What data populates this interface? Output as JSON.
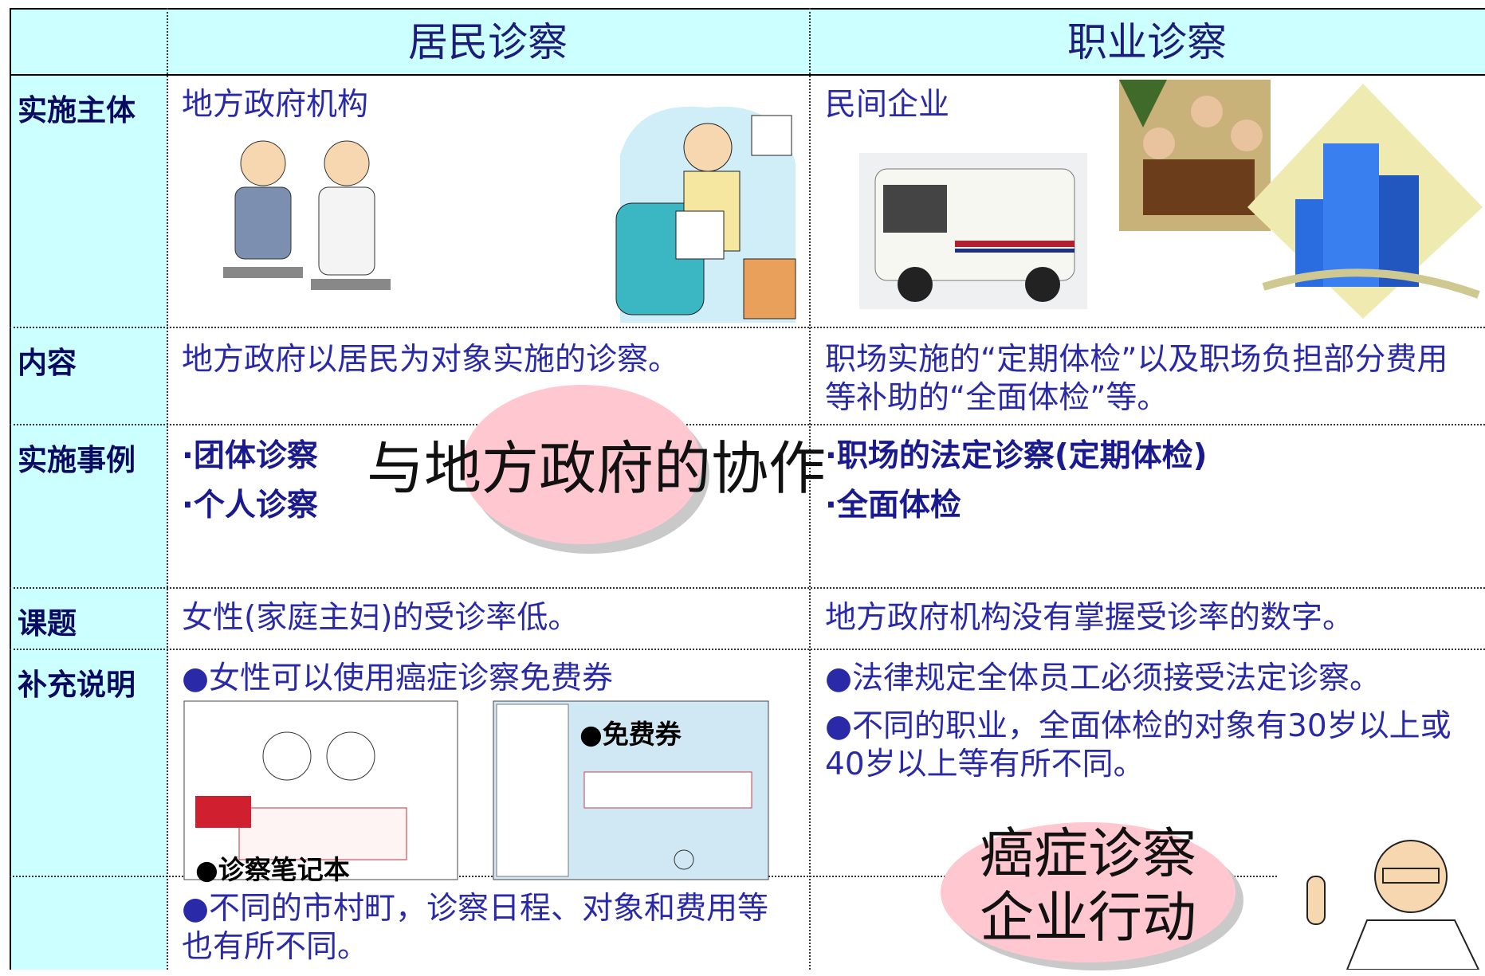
{
  "header": {
    "columns": [
      "居民诊察",
      "职业诊察"
    ]
  },
  "rows": [
    {
      "label": "实施主体",
      "resident": "地方政府机构",
      "occupational": "民间企业"
    },
    {
      "label": "内容",
      "resident": "地方政府以居民为对象实施的诊察。",
      "occupational": "职场实施的“定期体检”以及职场负担部分费用等补助的“全面体检”等。"
    },
    {
      "label": "实施事例",
      "resident": [
        "·团体诊察",
        "·个人诊察"
      ],
      "occupational": [
        "·职场的法定诊察(定期体检)",
        "·全面体检"
      ]
    },
    {
      "label": "课题",
      "resident": "女性(家庭主妇)的受诊率低。",
      "occupational": "地方政府机构没有掌握受诊率的数字。"
    },
    {
      "label": "补充说明",
      "resident": [
        "●女性可以使用癌症诊察免费券",
        "●不同的市村町，诊察日程、对象和费用等也有所不同。"
      ],
      "occupational": [
        "●法律规定全体员工必须接受法定诊察。",
        "●不同的职业，全面体检的对象有30岁以上或40岁以上等有所不同。"
      ]
    }
  ],
  "image_captions": [
    "●诊察笔记本",
    "●免费券"
  ],
  "callouts": {
    "cooperation": "与地方政府的协作",
    "corporate": [
      "癌症诊察",
      "企业行动"
    ]
  }
}
